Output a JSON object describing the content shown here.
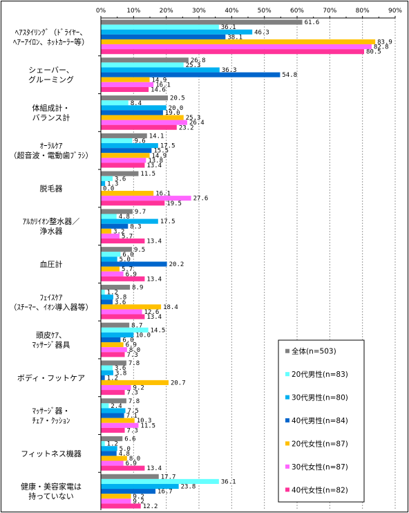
{
  "chart_data": {
    "type": "bar",
    "orientation": "horizontal",
    "title": "",
    "xlabel": "",
    "ylabel": "",
    "xlim": [
      0,
      90
    ],
    "x_ticks": [
      "0%",
      "10%",
      "20%",
      "30%",
      "40%",
      "50%",
      "60%",
      "70%",
      "80%",
      "90%"
    ],
    "grid": true,
    "legend_position": "bottom-right",
    "categories": [
      [
        "ﾍｱｽﾀｲﾘﾝｸﾞ（ﾄﾞﾗｲﾔｰ、",
        "ﾍｱｰｱｲﾛﾝ、ﾎｯﾄｶｰﾗｰ等）"
      ],
      [
        "シェーバー、",
        "グルーミング"
      ],
      [
        "体組成計・",
        "バランス計"
      ],
      [
        "ｵｰﾗﾙｹｱ",
        "（超音波・電動歯ﾌﾞﾗｼ）"
      ],
      [
        "脱毛器"
      ],
      [
        "ｱﾙｶﾘｲｵﾝ整水器／",
        "浄水器"
      ],
      [
        "血圧計"
      ],
      [
        "ﾌｪｲｽｹｱ",
        "（ｽﾁｰﾏｰ、ｲｵﾝ導入器等）"
      ],
      [
        "頭皮ｹｱ、",
        "ﾏｯｻｰｼﾞ器具"
      ],
      [
        "ボディ・フットケア"
      ],
      [
        "ﾏｯｻｰｼﾞ器・",
        "ﾁｪｱ・ｸｯｼｮﾝ"
      ],
      [
        "フィットネス機器"
      ],
      [
        "健康・美容家電は",
        "持っていない"
      ]
    ],
    "series": [
      {
        "name": "全体(n=503)",
        "color": "#808080",
        "values": [
          61.6,
          26.8,
          20.5,
          14.1,
          11.5,
          9.7,
          9.5,
          8.9,
          8.7,
          7.8,
          7.8,
          6.6,
          17.7
        ]
      },
      {
        "name": "20代男性(n=83)",
        "color": "#66ffff",
        "values": [
          36.1,
          25.3,
          8.4,
          9.6,
          3.6,
          4.8,
          6.0,
          1.2,
          14.5,
          3.6,
          2.4,
          1.2,
          36.1
        ]
      },
      {
        "name": "30代男性(n=80)",
        "color": "#00b0f0",
        "values": [
          46.3,
          36.3,
          20.0,
          17.5,
          1.3,
          17.5,
          5.0,
          3.8,
          10.0,
          3.8,
          7.5,
          5.0,
          23.8
        ]
      },
      {
        "name": "40代男性(n=84)",
        "color": "#0066cc",
        "values": [
          38.1,
          54.8,
          19.0,
          15.5,
          0.0,
          8.3,
          20.2,
          3.6,
          6.0,
          1.2,
          7.1,
          4.8,
          16.7
        ]
      },
      {
        "name": "20代女性(n=87)",
        "color": "#ffc000",
        "values": [
          83.9,
          14.9,
          25.3,
          14.9,
          16.1,
          3.2,
          5.7,
          18.4,
          6.9,
          20.7,
          10.3,
          8.0,
          9.2
        ]
      },
      {
        "name": "30代女性(n=87)",
        "color": "#ff66ff",
        "values": [
          82.8,
          16.1,
          26.4,
          13.8,
          27.6,
          5.7,
          6.9,
          12.6,
          8.0,
          9.2,
          11.5,
          6.9,
          9.2
        ]
      },
      {
        "name": "40代女性(n=82)",
        "color": "#ff3399",
        "values": [
          80.5,
          14.6,
          23.2,
          13.4,
          19.5,
          13.4,
          13.4,
          13.4,
          7.3,
          7.3,
          7.3,
          13.4,
          12.2
        ]
      }
    ]
  }
}
